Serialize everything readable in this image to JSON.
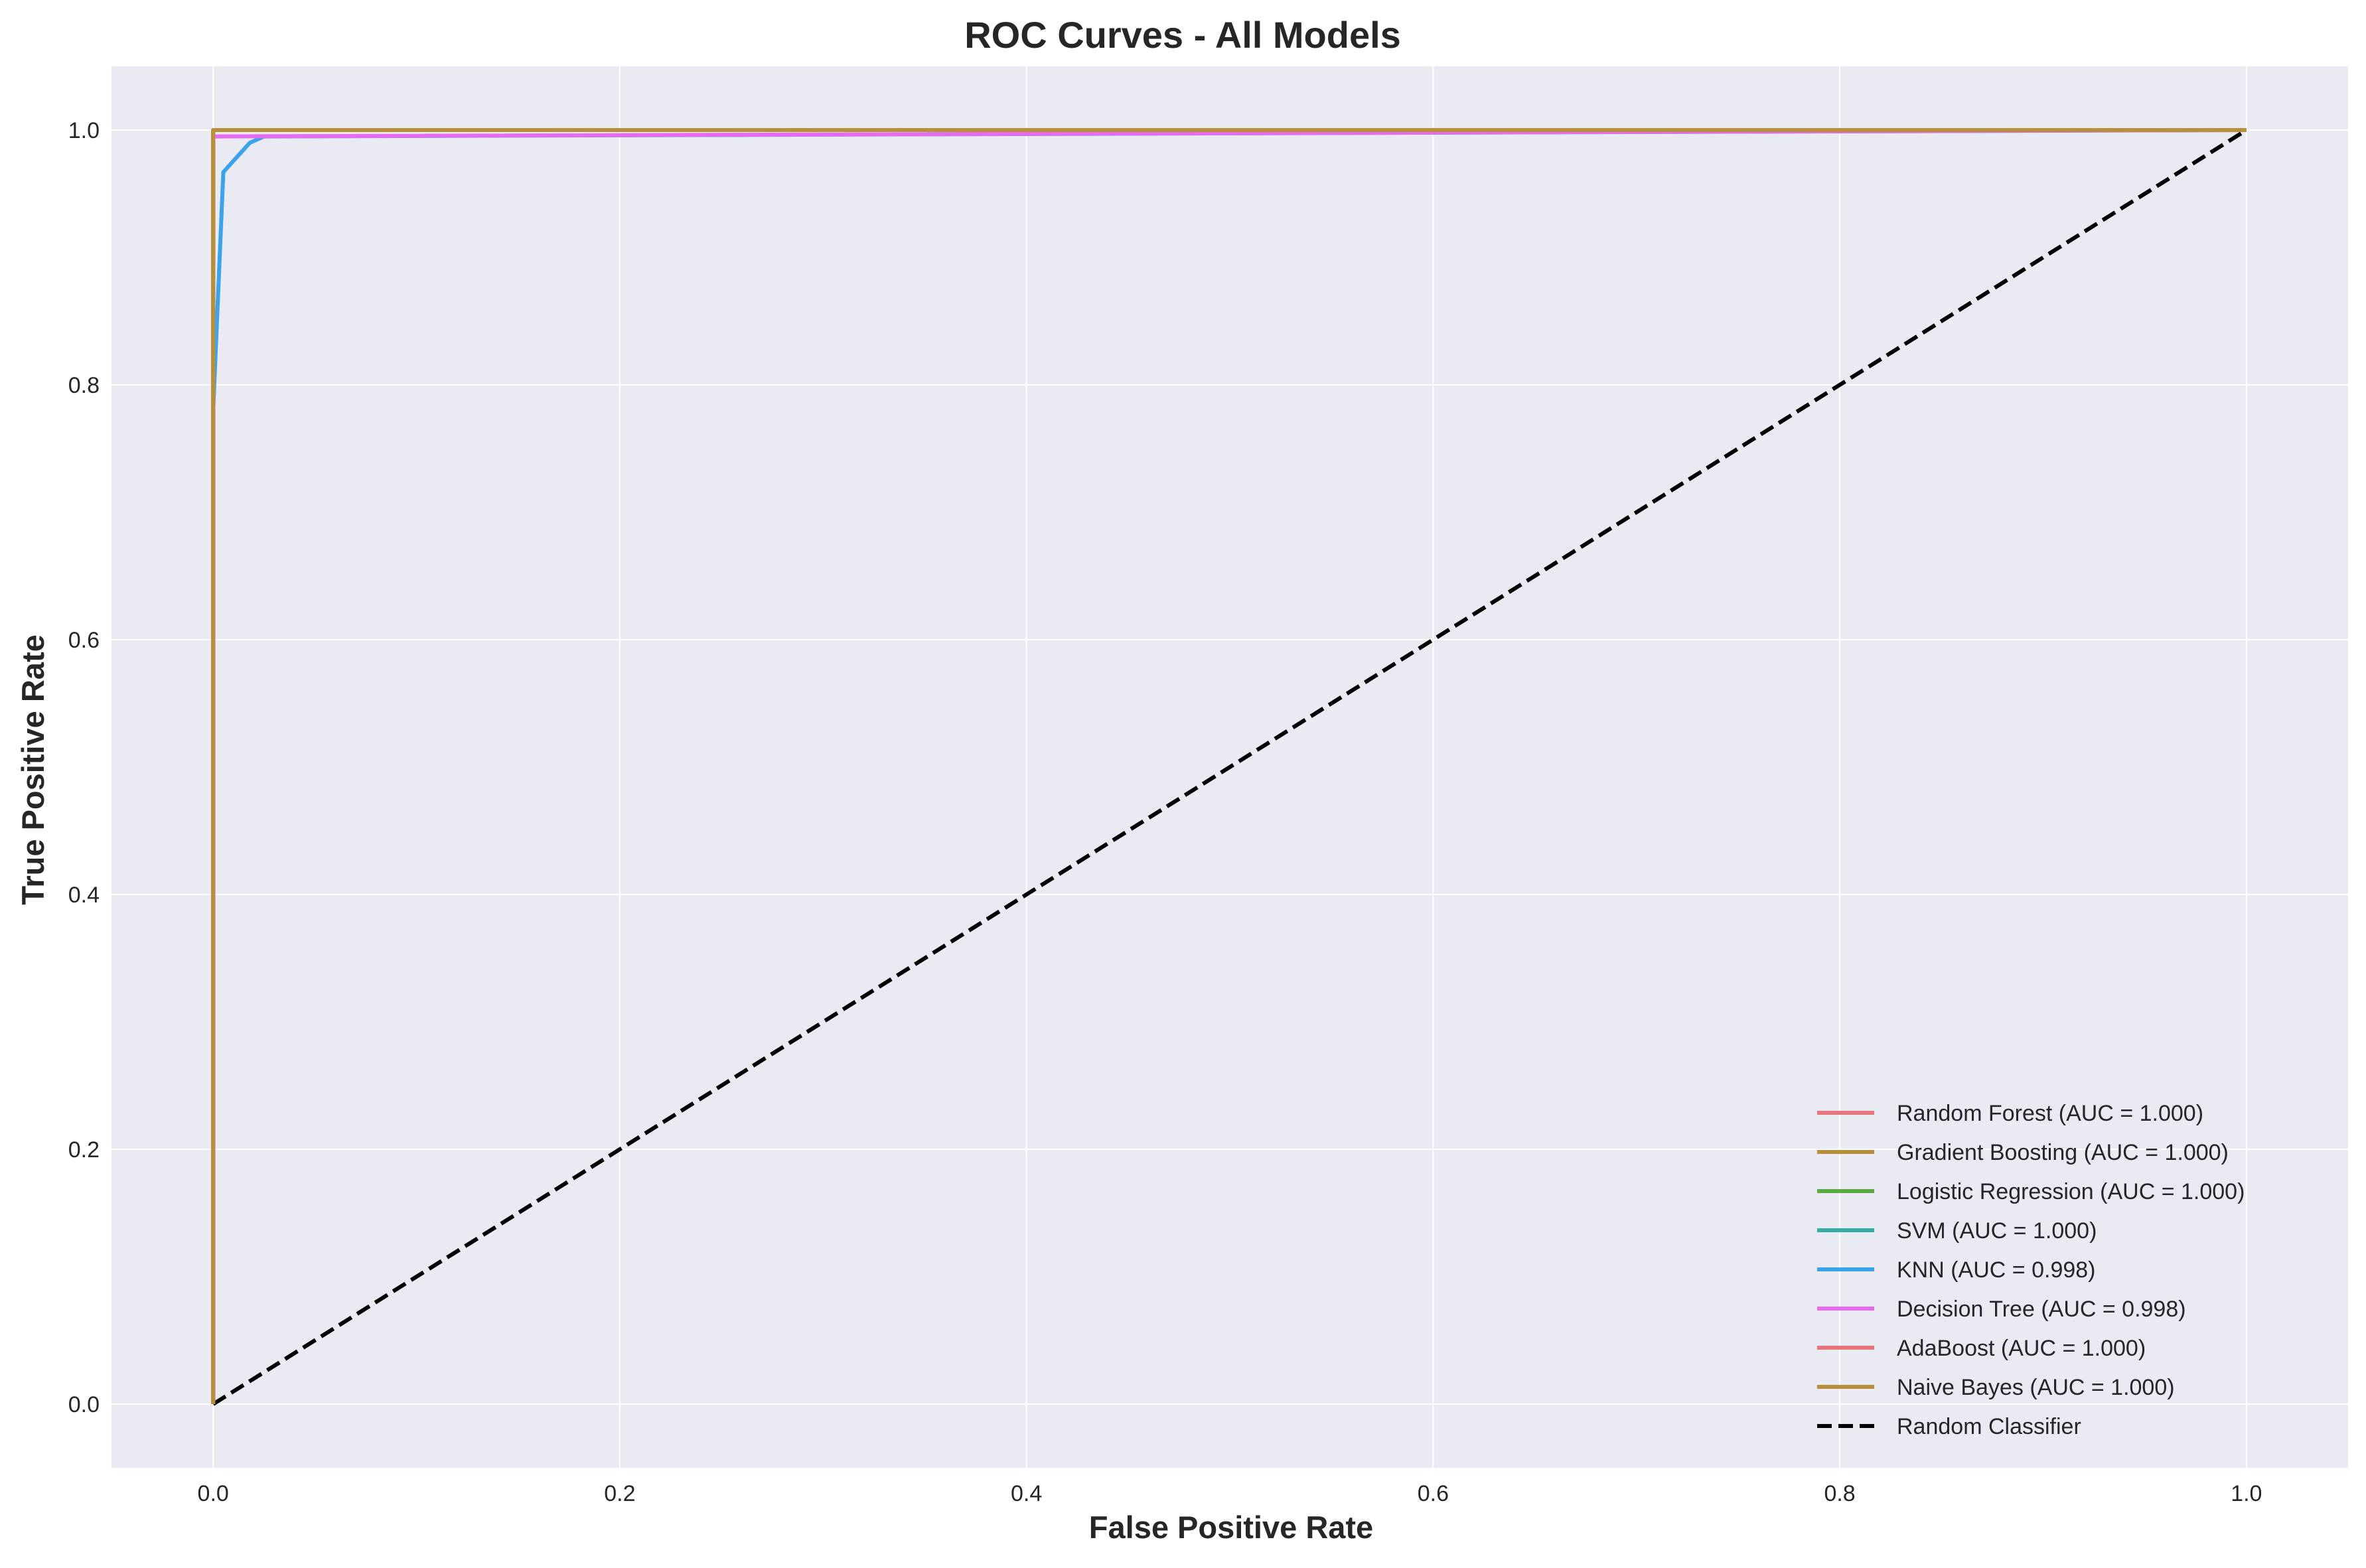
{
  "chart_data": {
    "type": "line",
    "title": "ROC Curves - All Models",
    "xlabel": "False Positive Rate",
    "ylabel": "True Positive Rate",
    "xlim": [
      -0.05,
      1.05
    ],
    "ylim": [
      -0.05,
      1.05
    ],
    "xticks": [
      0.0,
      0.2,
      0.4,
      0.6,
      0.8,
      1.0
    ],
    "yticks": [
      0.0,
      0.2,
      0.4,
      0.6,
      0.8,
      1.0
    ],
    "xtick_labels": [
      "0.0",
      "0.2",
      "0.4",
      "0.6",
      "0.8",
      "1.0"
    ],
    "ytick_labels": [
      "0.0",
      "0.2",
      "0.4",
      "0.6",
      "0.8",
      "1.0"
    ],
    "grid": true,
    "legend_position": "lower-right",
    "series": [
      {
        "name": "Random Forest (AUC = 1.000)",
        "color": "#e8747c",
        "dash": "solid",
        "points": [
          [
            0.0,
            0.0
          ],
          [
            0.0,
            1.0
          ],
          [
            1.0,
            1.0
          ]
        ]
      },
      {
        "name": "Gradient Boosting (AUC = 1.000)",
        "color": "#b8903a",
        "dash": "solid",
        "points": [
          [
            0.0,
            0.0
          ],
          [
            0.0,
            1.0
          ],
          [
            1.0,
            1.0
          ]
        ]
      },
      {
        "name": "Logistic Regression (AUC = 1.000)",
        "color": "#5aaa46",
        "dash": "solid",
        "points": [
          [
            0.0,
            0.0
          ],
          [
            0.0,
            1.0
          ],
          [
            1.0,
            1.0
          ]
        ]
      },
      {
        "name": "SVM (AUC = 1.000)",
        "color": "#36ada4",
        "dash": "solid",
        "points": [
          [
            0.0,
            0.0
          ],
          [
            0.0,
            1.0
          ],
          [
            1.0,
            1.0
          ]
        ]
      },
      {
        "name": "KNN (AUC = 0.998)",
        "color": "#3ba3ec",
        "dash": "solid",
        "points": [
          [
            0.0,
            0.0
          ],
          [
            0.0,
            0.78
          ],
          [
            0.005,
            0.967
          ],
          [
            0.018,
            0.99
          ],
          [
            0.025,
            0.995
          ],
          [
            1.0,
            1.0
          ]
        ]
      },
      {
        "name": "Decision Tree (AUC = 0.998)",
        "color": "#e66bf0",
        "dash": "solid",
        "points": [
          [
            0.0,
            0.0
          ],
          [
            0.0,
            0.995
          ],
          [
            1.0,
            1.0
          ]
        ]
      },
      {
        "name": "AdaBoost (AUC = 1.000)",
        "color": "#e8747c",
        "dash": "solid",
        "points": [
          [
            0.0,
            0.0
          ],
          [
            0.0,
            1.0
          ],
          [
            1.0,
            1.0
          ]
        ]
      },
      {
        "name": "Naive Bayes (AUC = 1.000)",
        "color": "#b8903a",
        "dash": "solid",
        "points": [
          [
            0.0,
            0.0
          ],
          [
            0.0,
            1.0
          ],
          [
            1.0,
            1.0
          ]
        ]
      },
      {
        "name": "Random Classifier",
        "color": "#000000",
        "dash": "dashed",
        "points": [
          [
            0.0,
            0.0
          ],
          [
            1.0,
            1.0
          ]
        ]
      }
    ]
  }
}
